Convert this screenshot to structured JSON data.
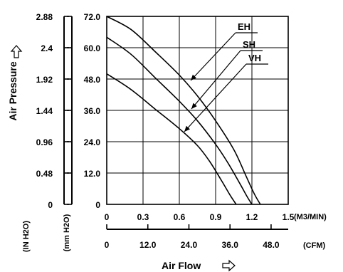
{
  "chart_data": {
    "type": "line",
    "xlabel": "Air Flow",
    "ylabel": "Air Pressure",
    "x_unit": "(M3/MIN)",
    "x_cfm_unit": "(CFM)",
    "y_inh2o_unit": "(IN H2O)",
    "y_mmh2o_unit": "(mm H2O)",
    "xlim": [
      0,
      1.5
    ],
    "ylim": [
      0,
      72.0
    ],
    "x_ticks_m3min": [
      "0",
      "0.3",
      "0.6",
      "0.9",
      "1.2",
      "1.5"
    ],
    "x_ticks_cfm": [
      "0",
      "12.0",
      "24.0",
      "36.0",
      "48.0"
    ],
    "y_ticks_mmh2o": [
      "0",
      "12.0",
      "24.0",
      "36.0",
      "48.0",
      "60.0",
      "72.0"
    ],
    "y_ticks_inh2o": [
      "0",
      "0.48",
      "0.96",
      "1.44",
      "1.92",
      "2.4",
      "2.88"
    ],
    "grid": true,
    "series": [
      {
        "name": "EH",
        "x": [
          0,
          0.2,
          0.4,
          0.6,
          0.75,
          0.9,
          1.05,
          1.15,
          1.22,
          1.27
        ],
        "y": [
          72.0,
          67.0,
          58.5,
          49.5,
          41.5,
          32.0,
          21.0,
          11.0,
          4.0,
          0
        ]
      },
      {
        "name": "SH",
        "x": [
          0,
          0.2,
          0.4,
          0.6,
          0.75,
          0.9,
          1.0,
          1.1,
          1.16,
          1.2
        ],
        "y": [
          64.0,
          57.5,
          48.5,
          39.5,
          32.0,
          23.0,
          16.0,
          8.0,
          3.0,
          0
        ]
      },
      {
        "name": "VH",
        "x": [
          0,
          0.2,
          0.4,
          0.6,
          0.75,
          0.85,
          0.95,
          1.02,
          1.07
        ],
        "y": [
          50.0,
          44.0,
          36.5,
          29.0,
          22.5,
          16.5,
          9.0,
          3.5,
          0
        ]
      }
    ]
  }
}
